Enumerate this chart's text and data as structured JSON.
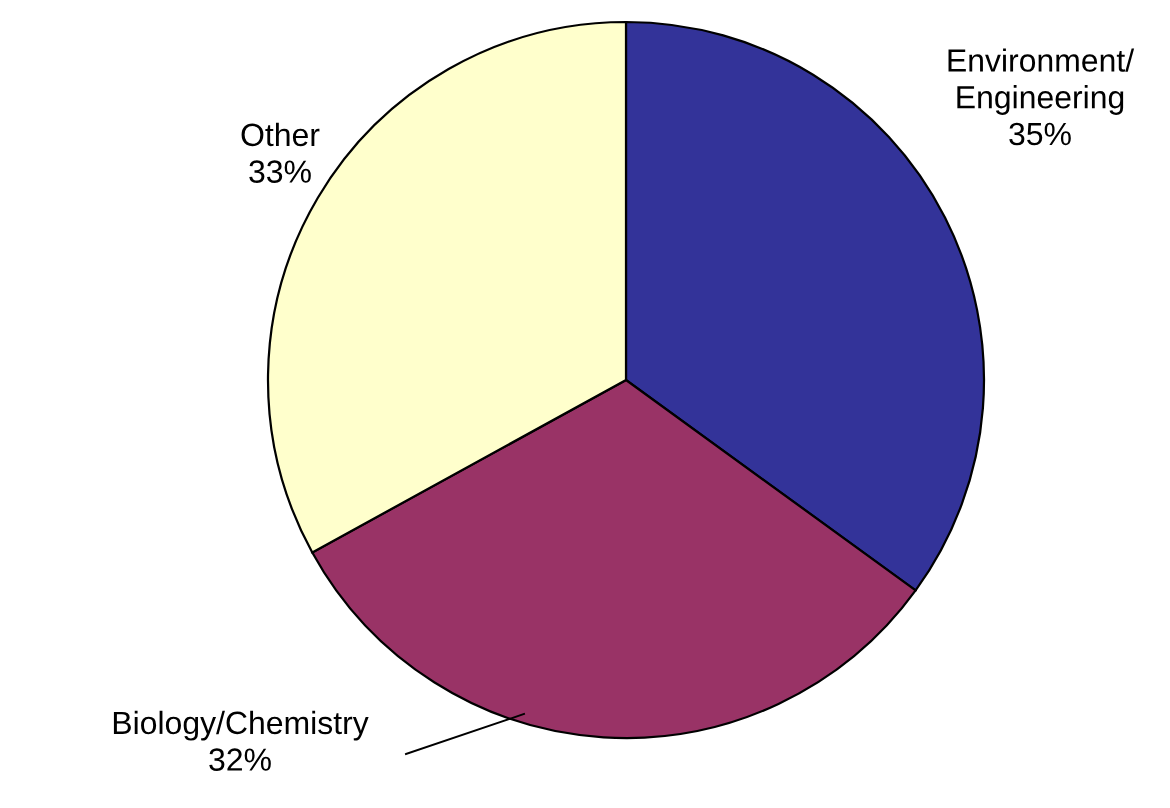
{
  "chart_data": {
    "type": "pie",
    "categories": [
      "Environment/\nEngineering",
      "Biology/Chemistry",
      "Other"
    ],
    "values": [
      35,
      32,
      33
    ],
    "value_labels": [
      "35%",
      "32%",
      "33%"
    ],
    "colors": [
      "#333399",
      "#993366",
      "#ffffcc"
    ]
  }
}
